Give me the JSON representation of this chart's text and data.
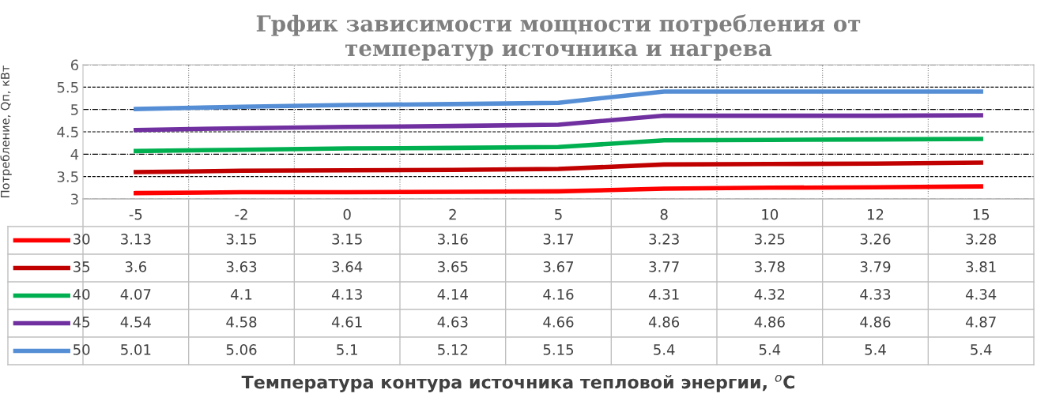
{
  "chart_data": {
    "type": "line",
    "title": "Грфик зависимости мощности потребления от\nтемператур источника и нагрева",
    "annotations": [
      "Температура контура источника тепловой энергии, $^{o}$C"
    ],
    "ylabel": "Потребление, Qп, кВт",
    "categories": [
      "-5",
      "-2",
      "0",
      "2",
      "5",
      "8",
      "10",
      "12",
      "15"
    ],
    "series": [
      {
        "name": "30",
        "color": "#ff0000",
        "values": [
          3.13,
          3.15,
          3.15,
          3.16,
          3.17,
          3.23,
          3.25,
          3.26,
          3.28
        ]
      },
      {
        "name": "35",
        "color": "#c00000",
        "values": [
          3.6,
          3.63,
          3.64,
          3.65,
          3.67,
          3.77,
          3.78,
          3.79,
          3.81
        ]
      },
      {
        "name": "40",
        "color": "#00b050",
        "values": [
          4.07,
          4.1,
          4.13,
          4.14,
          4.16,
          4.31,
          4.32,
          4.33,
          4.34
        ]
      },
      {
        "name": "45",
        "color": "#7030a0",
        "values": [
          4.54,
          4.58,
          4.61,
          4.63,
          4.66,
          4.86,
          4.86,
          4.86,
          4.87
        ]
      },
      {
        "name": "50",
        "color": "#558ed5",
        "values": [
          5.01,
          5.06,
          5.1,
          5.12,
          5.15,
          5.4,
          5.4,
          5.4,
          5.4
        ]
      }
    ],
    "ylim": [
      3,
      6
    ],
    "yticks": [
      3,
      3.5,
      4,
      4.5,
      5,
      5.5,
      6
    ],
    "grid": true,
    "data_labels": true,
    "legend": "left"
  }
}
